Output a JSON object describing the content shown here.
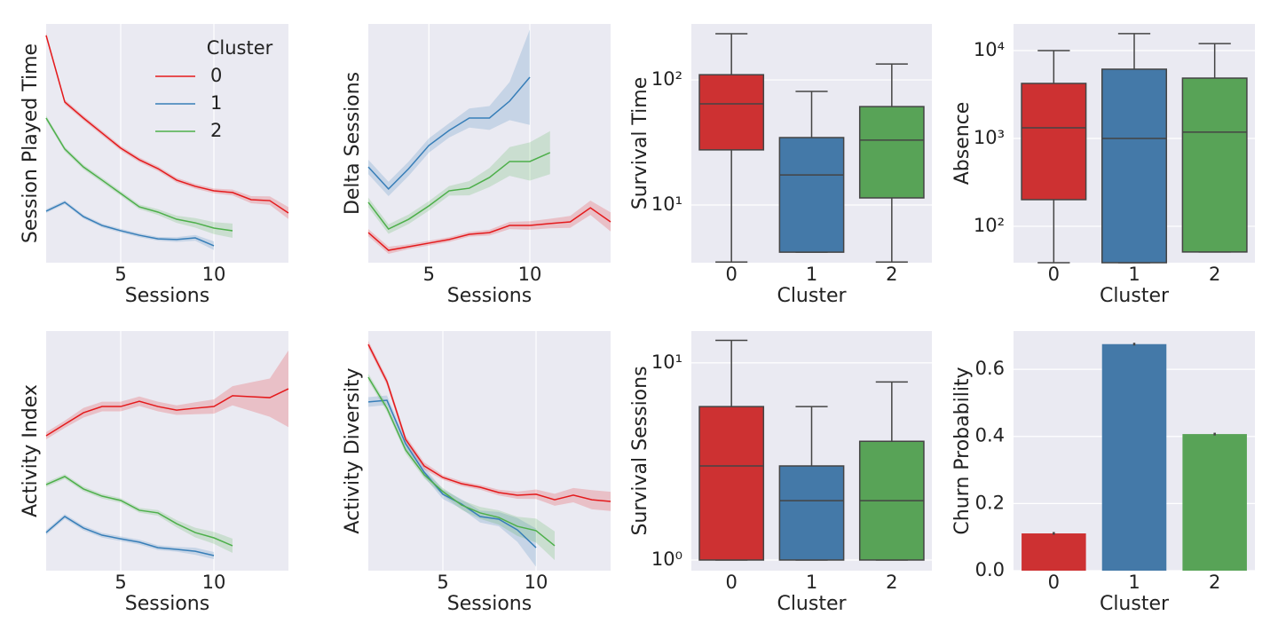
{
  "chart_data": [
    {
      "type": "line",
      "xlabel": "Sessions",
      "ylabel": "Session Played Time",
      "xlim": [
        1,
        14
      ],
      "xticks": [
        5,
        10
      ],
      "ylim": [
        0,
        100
      ],
      "grid": true,
      "legend": "upper right",
      "legend_title": "Cluster",
      "series": [
        {
          "name": "0",
          "color": "#e41a1c",
          "x": [
            1,
            2,
            3,
            4,
            5,
            6,
            7,
            8,
            9,
            10,
            11,
            12,
            13,
            14
          ],
          "values": [
            95.2,
            67.3,
            60.6,
            54.3,
            48.0,
            43.1,
            39.4,
            34.6,
            32.0,
            30.1,
            29.4,
            26.4,
            26.0,
            20.8
          ],
          "ci": [
            1.2,
            1,
            1,
            1,
            1,
            1,
            1,
            1,
            1,
            1,
            1.2,
            1.5,
            1.8,
            2.5
          ]
        },
        {
          "name": "1",
          "color": "#377eb8",
          "x": [
            1,
            2,
            3,
            4,
            5,
            6,
            7,
            8,
            9,
            10
          ],
          "values": [
            21.6,
            25.3,
            19.3,
            15.6,
            13.4,
            11.5,
            10.0,
            9.7,
            10.4,
            7.1
          ],
          "ci": [
            0.8,
            0.8,
            0.8,
            0.8,
            0.8,
            0.8,
            0.8,
            1,
            1.2,
            1.8
          ]
        },
        {
          "name": "2",
          "color": "#4daf4a",
          "x": [
            1,
            2,
            3,
            4,
            5,
            6,
            7,
            8,
            9,
            10,
            11
          ],
          "values": [
            60.6,
            47.6,
            40.1,
            34.6,
            29.0,
            23.4,
            21.2,
            18.2,
            16.7,
            14.5,
            13.4
          ],
          "ci": [
            1,
            1,
            1,
            1,
            1,
            1,
            1.2,
            1.5,
            2,
            2.5,
            3
          ]
        }
      ]
    },
    {
      "type": "line",
      "xlabel": "Sessions",
      "ylabel": "Delta Sessions",
      "xlim": [
        2,
        14
      ],
      "xticks": [
        5,
        10
      ],
      "ylim": [
        0,
        100
      ],
      "grid": true,
      "series": [
        {
          "name": "0",
          "color": "#e41a1c",
          "x": [
            2,
            3,
            4,
            5,
            6,
            7,
            8,
            9,
            10,
            11,
            12,
            13,
            14
          ],
          "values": [
            12.6,
            5.2,
            6.7,
            8.2,
            9.7,
            11.9,
            12.6,
            15.6,
            15.6,
            16.4,
            17.1,
            23.0,
            17.1
          ],
          "ci": [
            1.5,
            1.5,
            1,
            1,
            1,
            1,
            1.2,
            1.5,
            1.8,
            2,
            2.5,
            3,
            4
          ]
        },
        {
          "name": "1",
          "color": "#377eb8",
          "x": [
            2,
            3,
            4,
            5,
            6,
            7,
            8,
            9,
            10
          ],
          "values": [
            40.1,
            30.9,
            39.4,
            49.1,
            55.4,
            60.6,
            60.6,
            67.7,
            77.7
          ],
          "ci": [
            3,
            3,
            3,
            3,
            3,
            4,
            5,
            8,
            20
          ]
        },
        {
          "name": "2",
          "color": "#4daf4a",
          "x": [
            2,
            3,
            4,
            5,
            6,
            7,
            8,
            9,
            10,
            11
          ],
          "values": [
            25.3,
            14.1,
            18.2,
            23.8,
            30.1,
            31.2,
            35.7,
            42.4,
            42.4,
            46.1
          ],
          "ci": [
            2,
            2,
            2,
            2,
            2,
            3,
            4,
            6,
            8,
            9
          ]
        }
      ]
    },
    {
      "type": "box",
      "xlabel": "Cluster",
      "ylabel": "Survival Time",
      "categories": [
        "0",
        "1",
        "2"
      ],
      "log_y": true,
      "ylim": [
        3.46,
        280
      ],
      "yticks": [
        {
          "value": 10,
          "label": "10¹"
        },
        {
          "value": 100,
          "label": "10²"
        }
      ],
      "grid": true,
      "colors": [
        "#cd3132",
        "#4479a8",
        "#58a357"
      ],
      "stats": [
        {
          "whislo": 3.5,
          "q1": 27.6,
          "med": 64.4,
          "q3": 110,
          "whishi": 234
        },
        {
          "whislo": 4.2,
          "q1": 4.2,
          "med": 17.4,
          "q3": 34.6,
          "whishi": 80.9
        },
        {
          "whislo": 3.5,
          "q1": 11.4,
          "med": 33.0,
          "q3": 61.2,
          "whishi": 134
        }
      ]
    },
    {
      "type": "box",
      "xlabel": "Cluster",
      "ylabel": "Absence",
      "categories": [
        "0",
        "1",
        "2"
      ],
      "log_y": true,
      "ylim": [
        38.5,
        20100
      ],
      "yticks": [
        {
          "value": 100,
          "label": "10²"
        },
        {
          "value": 1000,
          "label": "10³"
        },
        {
          "value": 10000,
          "label": "10⁴"
        }
      ],
      "grid": true,
      "colors": [
        "#cd3132",
        "#4479a8",
        "#58a357"
      ],
      "stats": [
        {
          "whislo": 38.5,
          "q1": 201,
          "med": 1320,
          "q3": 4230,
          "whishi": 10000
        },
        {
          "whislo": 38.5,
          "q1": 38.5,
          "med": 1000,
          "q3": 6140,
          "whishi": 15600
        },
        {
          "whislo": 51,
          "q1": 51,
          "med": 1180,
          "q3": 4860,
          "whishi": 12000
        }
      ]
    },
    {
      "type": "line",
      "xlabel": "Sessions",
      "ylabel": "Activity Index",
      "xlim": [
        1,
        14
      ],
      "xticks": [
        5,
        10
      ],
      "ylim": [
        0,
        100
      ],
      "grid": true,
      "series": [
        {
          "name": "0",
          "color": "#e41a1c",
          "x": [
            1,
            2,
            3,
            4,
            5,
            6,
            7,
            8,
            9,
            10,
            11,
            12,
            13,
            14
          ],
          "values": [
            56.3,
            61.1,
            65.9,
            68.5,
            68.5,
            70.7,
            68.5,
            67.0,
            67.8,
            68.5,
            73.0,
            72.6,
            72.2,
            75.9
          ],
          "ci": [
            1.5,
            1.5,
            2,
            2,
            2,
            2,
            2,
            2,
            2.5,
            3,
            4,
            6,
            8,
            16
          ]
        },
        {
          "name": "1",
          "color": "#377eb8",
          "x": [
            1,
            2,
            3,
            4,
            5,
            6,
            7,
            8,
            9,
            10
          ],
          "values": [
            15.9,
            22.6,
            17.8,
            14.8,
            13.3,
            11.9,
            9.6,
            8.9,
            8.1,
            6.3
          ],
          "ci": [
            1,
            1,
            1,
            1,
            1,
            1,
            1,
            1,
            1.5,
            1.5
          ]
        },
        {
          "name": "2",
          "color": "#4daf4a",
          "x": [
            1,
            2,
            3,
            4,
            5,
            6,
            7,
            8,
            9,
            10,
            11
          ],
          "values": [
            35.9,
            39.3,
            34.1,
            31.1,
            29.3,
            25.2,
            24.1,
            19.6,
            15.9,
            13.7,
            10.4
          ],
          "ci": [
            1,
            1,
            1,
            1,
            1,
            1,
            1.2,
            1.5,
            2,
            2.5,
            3
          ]
        }
      ]
    },
    {
      "type": "line",
      "xlabel": "Sessions",
      "ylabel": "Activity Diversity",
      "xlim": [
        1,
        14
      ],
      "xticks": [
        5,
        10
      ],
      "ylim": [
        0,
        100
      ],
      "grid": true,
      "series": [
        {
          "name": "0",
          "color": "#e41a1c",
          "x": [
            1,
            2,
            3,
            4,
            5,
            6,
            7,
            8,
            9,
            10,
            11,
            12,
            13,
            14
          ],
          "values": [
            94.4,
            78.9,
            54.8,
            43.7,
            38.9,
            36.3,
            34.8,
            32.6,
            31.5,
            31.9,
            29.6,
            31.5,
            29.6,
            28.9
          ],
          "ci": [
            1.5,
            1.5,
            1.5,
            1.5,
            1,
            1,
            1,
            1.2,
            1.5,
            2,
            2.5,
            3,
            4,
            4
          ]
        },
        {
          "name": "1",
          "color": "#377eb8",
          "x": [
            1,
            2,
            3,
            4,
            5,
            6,
            7,
            8,
            9,
            10
          ],
          "values": [
            70.4,
            71.1,
            53.0,
            41.1,
            31.9,
            27.8,
            22.6,
            21.5,
            17.0,
            9.6
          ],
          "ci": [
            2,
            2,
            2,
            2,
            2,
            2,
            2.5,
            3,
            5,
            8
          ]
        },
        {
          "name": "2",
          "color": "#4daf4a",
          "x": [
            1,
            2,
            3,
            4,
            5,
            6,
            7,
            8,
            9,
            10,
            11
          ],
          "values": [
            80.7,
            67.8,
            50.4,
            40.0,
            33.0,
            27.4,
            24.1,
            22.2,
            18.5,
            16.7,
            10.4
          ],
          "ci": [
            1.5,
            1.5,
            1.5,
            1.5,
            1.5,
            2,
            2.5,
            3,
            4,
            5,
            6
          ]
        }
      ]
    },
    {
      "type": "box",
      "xlabel": "Cluster",
      "ylabel": "Survival Sessions",
      "categories": [
        "0",
        "1",
        "2"
      ],
      "log_y": true,
      "ylim": [
        0.883,
        14.5
      ],
      "yticks": [
        {
          "value": 1,
          "label": "10⁰"
        },
        {
          "value": 10,
          "label": "10¹"
        }
      ],
      "grid": true,
      "colors": [
        "#cd3132",
        "#4479a8",
        "#58a357"
      ],
      "stats": [
        {
          "whislo": 1,
          "q1": 1,
          "med": 3,
          "q3": 6,
          "whishi": 13
        },
        {
          "whislo": 1,
          "q1": 1,
          "med": 2,
          "q3": 3,
          "whishi": 6
        },
        {
          "whislo": 1,
          "q1": 1,
          "med": 2,
          "q3": 4,
          "whishi": 8
        }
      ]
    },
    {
      "type": "bar",
      "xlabel": "Cluster",
      "ylabel": "Churn Probability",
      "categories": [
        "0",
        "1",
        "2"
      ],
      "ylim": [
        0,
        0.714
      ],
      "yticks": [
        {
          "value": 0,
          "label": "0.0"
        },
        0.2,
        0.4,
        0.6
      ],
      "grid": true,
      "colors": [
        "#cd3132",
        "#4479a8",
        "#58a357"
      ],
      "values": [
        0.111,
        0.675,
        0.407
      ],
      "errors": [
        0.004,
        0.004,
        0.004
      ]
    }
  ]
}
